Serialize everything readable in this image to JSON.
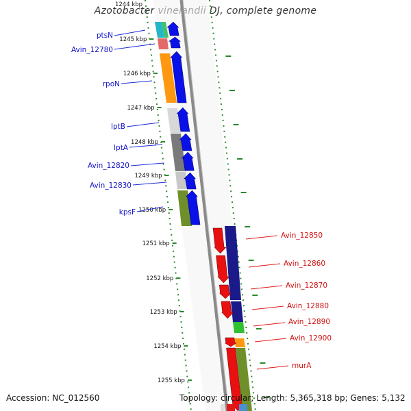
{
  "title": "Azotobacter vinelandii DJ, complete genome",
  "footer": {
    "accession": "Accession: NC_012560",
    "summary": "Topology: circular; Length: 5,365,318 bp; Genes: 5,132"
  },
  "scale": {
    "top_partial_label": "1244 kbp",
    "ticks": [
      "1245 kbp",
      "1246 kbp",
      "1247 kbp",
      "1248 kbp",
      "1249 kbp",
      "1250 kbp",
      "1251 kbp",
      "1252 kbp",
      "1253 kbp",
      "1254 kbp",
      "1255 kbp"
    ]
  },
  "left_genes": [
    {
      "name": "ptsN",
      "color": "#1b2bd8"
    },
    {
      "name": "Avin_12780",
      "color": "#1b2bd8"
    },
    {
      "name": "rpoN",
      "color": "#1b2bd8"
    },
    {
      "name": "lptB",
      "color": "#1b2bd8"
    },
    {
      "name": "lptA",
      "color": "#1b2bd8"
    },
    {
      "name": "Avin_12820",
      "color": "#1b2bd8"
    },
    {
      "name": "Avin_12830",
      "color": "#1b2bd8"
    },
    {
      "name": "kpsF",
      "color": "#1b2bd8"
    }
  ],
  "right_genes": [
    {
      "name": "Avin_12850",
      "color": "#e01818"
    },
    {
      "name": "Avin_12860",
      "color": "#e01818"
    },
    {
      "name": "Avin_12870",
      "color": "#e01818"
    },
    {
      "name": "Avin_12880",
      "color": "#e01818"
    },
    {
      "name": "Avin_12890",
      "color": "#e01818"
    },
    {
      "name": "Avin_12900",
      "color": "#e01818"
    },
    {
      "name": "murA",
      "color": "#e01818"
    }
  ],
  "colors": {
    "forward_strand": "#0a10e8",
    "reverse_strand": "#e81010",
    "backbone": "#8a8a8a",
    "tick_marks": "#2a8a2a"
  }
}
